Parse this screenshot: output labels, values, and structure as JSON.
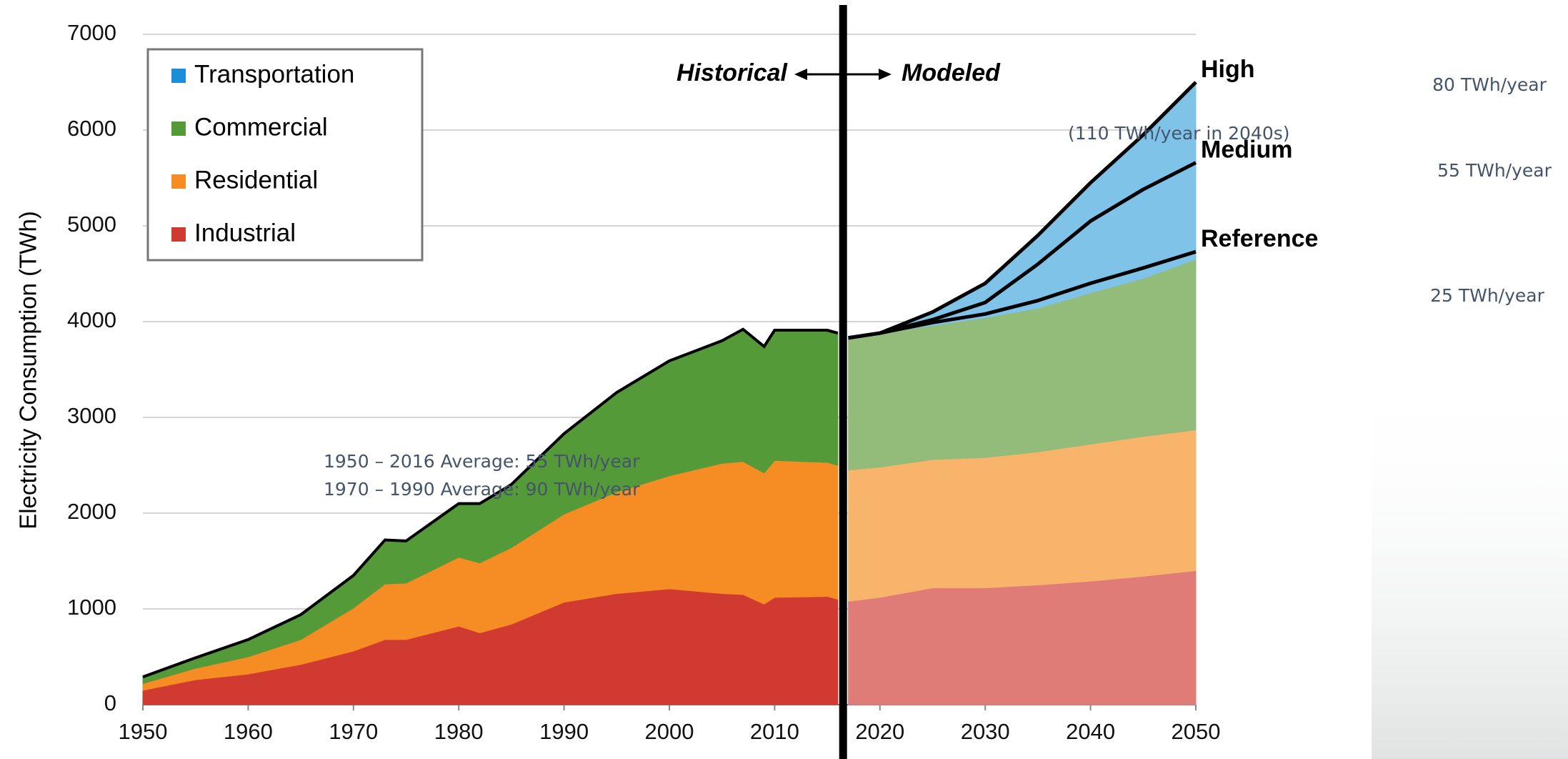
{
  "chart_data": {
    "type": "stacked-area",
    "ylabel": "Electricity Consumption (TWh)",
    "x": [
      1950,
      1955,
      1960,
      1965,
      1970,
      1973,
      1975,
      1980,
      1982,
      1985,
      1990,
      1995,
      2000,
      2005,
      2007,
      2009,
      2010,
      2015,
      2016,
      2017,
      2020,
      2025,
      2030,
      2035,
      2040,
      2045,
      2050
    ],
    "modeled_from": 2017,
    "series": [
      {
        "name": "Industrial",
        "color": "#d03a30",
        "modeled_color": "#e07c77",
        "values": [
          150,
          260,
          320,
          420,
          560,
          680,
          680,
          820,
          750,
          840,
          1070,
          1160,
          1210,
          1160,
          1150,
          1050,
          1120,
          1130,
          1100,
          1080,
          1120,
          1220,
          1220,
          1250,
          1290,
          1340,
          1400
        ]
      },
      {
        "name": "Residential",
        "color": "#f58c24",
        "modeled_color": "#f9b46c",
        "values": [
          70,
          120,
          180,
          260,
          450,
          580,
          590,
          720,
          730,
          800,
          920,
          1060,
          1180,
          1360,
          1390,
          1370,
          1430,
          1400,
          1400,
          1370,
          1360,
          1340,
          1360,
          1390,
          1430,
          1460,
          1470
        ]
      },
      {
        "name": "Commercial",
        "color": "#559a38",
        "modeled_color": "#93bb7a",
        "values": [
          70,
          110,
          180,
          260,
          340,
          460,
          440,
          560,
          620,
          660,
          840,
          1040,
          1200,
          1280,
          1380,
          1320,
          1360,
          1380,
          1380,
          1380,
          1400,
          1400,
          1460,
          1500,
          1580,
          1650,
          1780
        ]
      },
      {
        "name": "Transportation",
        "color": "#1a8fd8",
        "modeled_color": "#7fc3e8",
        "values": [
          0,
          0,
          0,
          0,
          0,
          0,
          0,
          0,
          0,
          0,
          0,
          0,
          0,
          0,
          0,
          0,
          0,
          0,
          0,
          0,
          10,
          140,
          360,
          760,
          1150,
          1500,
          1850
        ]
      }
    ],
    "scenario_x": [
      2017,
      2020,
      2025,
      2030,
      2035,
      2040,
      2045,
      2050
    ],
    "scenarios": [
      {
        "name": "High",
        "values": [
          3830,
          3880,
          4100,
          4400,
          4900,
          5450,
          5950,
          6500
        ]
      },
      {
        "name": "Medium",
        "values": [
          3830,
          3880,
          4020,
          4200,
          4600,
          5050,
          5380,
          5660
        ]
      },
      {
        "name": "Reference",
        "values": [
          3830,
          3880,
          3990,
          4080,
          4220,
          4400,
          4560,
          4730
        ]
      }
    ],
    "xlim": [
      1950,
      2050
    ],
    "xticks": [
      1950,
      1960,
      1970,
      1980,
      1990,
      2000,
      2010,
      2020,
      2030,
      2040,
      2050
    ],
    "ylim": [
      0,
      7000
    ],
    "yticks": [
      0,
      1000,
      2000,
      3000,
      4000,
      5000,
      6000,
      7000
    ],
    "grid": true,
    "legend": "top-left",
    "divider_labels": [
      "Historical",
      "Modeled"
    ],
    "annotations": [
      "1950 – 2016 Average: 55 TWh/year",
      "1970 – 1990 Average: 90 TWh/year",
      "(110 TWh/year in 2040s)",
      "80 TWh/year",
      "55 TWh/year",
      "25 TWh/year"
    ]
  }
}
